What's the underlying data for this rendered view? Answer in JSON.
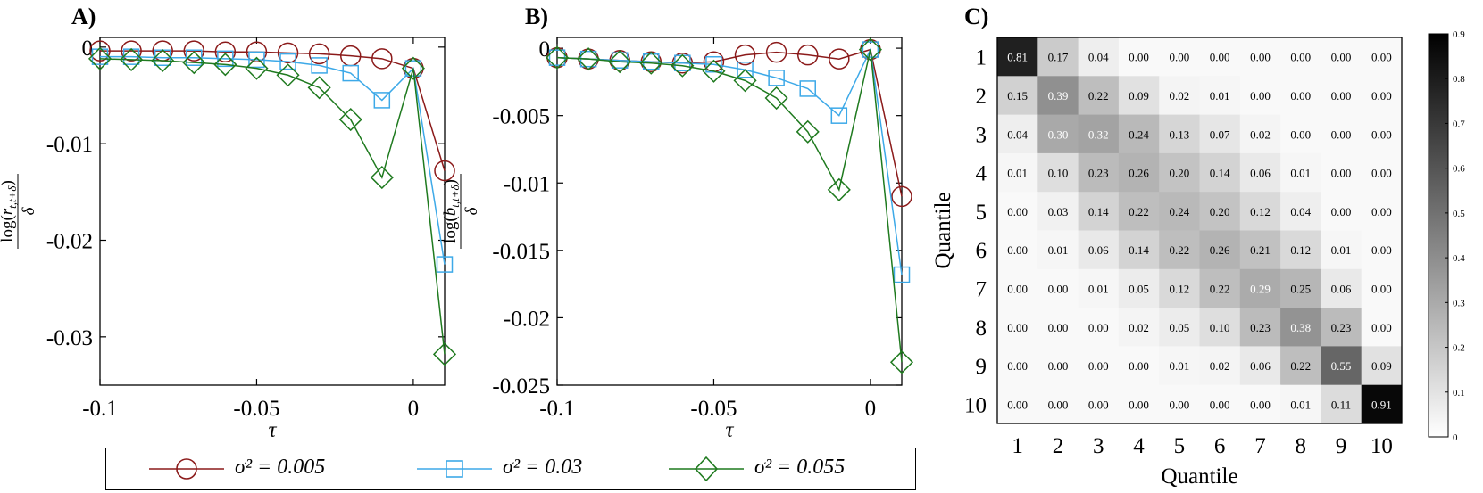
{
  "panels": {
    "a": "A)",
    "b": "B)",
    "c": "C)"
  },
  "colors": {
    "series_red": "#8b1a1a",
    "series_blue": "#3da9e8",
    "series_green": "#1f7a1f"
  },
  "legend": {
    "items": [
      {
        "label": "σ² = 0.005",
        "marker": "circle-marker"
      },
      {
        "label": "σ² = 0.03",
        "marker": "square-marker"
      },
      {
        "label": "σ² = 0.055",
        "marker": "diamond-marker"
      }
    ]
  },
  "chart_data": [
    {
      "id": "A",
      "type": "line",
      "xlabel": "τ",
      "ylabel": "log(r_{t,t+δ}) / δ",
      "xlim": [
        -0.1,
        0.01
      ],
      "ylim": [
        -0.035,
        0.001
      ],
      "xticks": [
        -0.1,
        -0.05,
        0
      ],
      "xtick_labels": [
        "-0.1",
        "-0.05",
        "0"
      ],
      "yticks": [
        0,
        -0.01,
        -0.02,
        -0.03
      ],
      "ytick_labels": [
        "0",
        "-0.01",
        "-0.02",
        "-0.03"
      ],
      "x": [
        -0.1,
        -0.09,
        -0.08,
        -0.07,
        -0.06,
        -0.05,
        -0.04,
        -0.03,
        -0.02,
        -0.01,
        0,
        0.01
      ],
      "series": [
        {
          "name": "σ² = 0.005",
          "marker": "circle",
          "values": [
            -0.0004,
            -0.0004,
            -0.0004,
            -0.0004,
            -0.0005,
            -0.0005,
            -0.0006,
            -0.0007,
            -0.0009,
            -0.0012,
            -0.0022,
            -0.0128
          ]
        },
        {
          "name": "σ² = 0.03",
          "marker": "square",
          "values": [
            -0.001,
            -0.001,
            -0.0011,
            -0.0011,
            -0.0012,
            -0.0013,
            -0.0015,
            -0.0019,
            -0.0027,
            -0.0055,
            -0.0022,
            -0.0225
          ]
        },
        {
          "name": "σ² = 0.055",
          "marker": "diamond",
          "values": [
            -0.0012,
            -0.0013,
            -0.0014,
            -0.0016,
            -0.0018,
            -0.0022,
            -0.0029,
            -0.0042,
            -0.0075,
            -0.0135,
            -0.0022,
            -0.0318
          ]
        }
      ]
    },
    {
      "id": "B",
      "type": "line",
      "xlabel": "τ",
      "ylabel": "log(b_{t,t+δ}) / δ",
      "xlim": [
        -0.1,
        0.01
      ],
      "ylim": [
        -0.025,
        0.0008
      ],
      "xticks": [
        -0.1,
        -0.05,
        0
      ],
      "xtick_labels": [
        "-0.1",
        "-0.05",
        "0"
      ],
      "yticks": [
        0,
        -0.005,
        -0.01,
        -0.015,
        -0.02,
        -0.025
      ],
      "ytick_labels": [
        "0",
        "-0.005",
        "-0.01",
        "-0.015",
        "-0.02",
        "-0.025"
      ],
      "x": [
        -0.1,
        -0.09,
        -0.08,
        -0.07,
        -0.06,
        -0.05,
        -0.04,
        -0.03,
        -0.02,
        -0.01,
        0,
        0.01
      ],
      "series": [
        {
          "name": "σ² = 0.005",
          "marker": "circle",
          "values": [
            -0.0007,
            -0.0008,
            -0.0009,
            -0.001,
            -0.0011,
            -0.001,
            -0.0005,
            -0.0003,
            -0.0005,
            -0.0008,
            -0.0001,
            -0.011
          ]
        },
        {
          "name": "σ² = 0.03",
          "marker": "square",
          "values": [
            -0.0007,
            -0.0008,
            -0.0009,
            -0.001,
            -0.0011,
            -0.0012,
            -0.0016,
            -0.0022,
            -0.003,
            -0.005,
            -0.0001,
            -0.0168
          ]
        },
        {
          "name": "σ² = 0.055",
          "marker": "diamond",
          "values": [
            -0.0007,
            -0.0008,
            -0.001,
            -0.0011,
            -0.0013,
            -0.0017,
            -0.0024,
            -0.0037,
            -0.0062,
            -0.0105,
            -0.0001,
            -0.0233
          ]
        }
      ]
    },
    {
      "id": "C",
      "type": "heatmap",
      "xlabel": "Quantile",
      "ylabel": "Quantile",
      "categories": [
        "1",
        "2",
        "3",
        "4",
        "5",
        "6",
        "7",
        "8",
        "9",
        "10"
      ],
      "colorbar": {
        "range": [
          0,
          0.9
        ],
        "ticks": [
          0,
          0.1,
          0.2,
          0.3,
          0.4,
          0.5,
          0.6,
          0.7,
          0.8,
          0.9
        ],
        "tick_labels": [
          "0",
          "0.1",
          "0.2",
          "0.3",
          "0.4",
          "0.5",
          "0.6",
          "0.7",
          "0.8",
          "0.9"
        ]
      },
      "labels": [
        [
          "0.81",
          "0.17",
          "0.04",
          "0.00",
          "0.00",
          "0.00",
          "0.00",
          "0.00",
          "0.00",
          "0.00"
        ],
        [
          "0.15",
          "0.39",
          "0.22",
          "0.09",
          "0.02",
          "0.01",
          "0.00",
          "0.00",
          "0.00",
          "0.00"
        ],
        [
          "0.04",
          "0.30",
          "0.32",
          "0.24",
          "0.13",
          "0.07",
          "0.02",
          "0.00",
          "0.00",
          "0.00"
        ],
        [
          "0.01",
          "0.10",
          "0.23",
          "0.26",
          "0.20",
          "0.14",
          "0.06",
          "0.01",
          "0.00",
          "0.00"
        ],
        [
          "0.00",
          "0.03",
          "0.14",
          "0.22",
          "0.24",
          "0.20",
          "0.12",
          "0.04",
          "0.00",
          "0.00"
        ],
        [
          "0.00",
          "0.01",
          "0.06",
          "0.14",
          "0.22",
          "0.26",
          "0.21",
          "0.12",
          "0.01",
          "0.00"
        ],
        [
          "0.00",
          "0.00",
          "0.01",
          "0.05",
          "0.12",
          "0.22",
          "0.29",
          "0.25",
          "0.06",
          "0.00"
        ],
        [
          "0.00",
          "0.00",
          "0.00",
          "0.02",
          "0.05",
          "0.10",
          "0.23",
          "0.38",
          "0.23",
          "0.00"
        ],
        [
          "0.00",
          "0.00",
          "0.00",
          "0.00",
          "0.01",
          "0.02",
          "0.06",
          "0.22",
          "0.55",
          "0.09"
        ],
        [
          "0.00",
          "0.00",
          "0.00",
          "0.00",
          "0.00",
          "0.00",
          "0.00",
          "0.01",
          "0.11",
          "0.91"
        ]
      ]
    }
  ]
}
